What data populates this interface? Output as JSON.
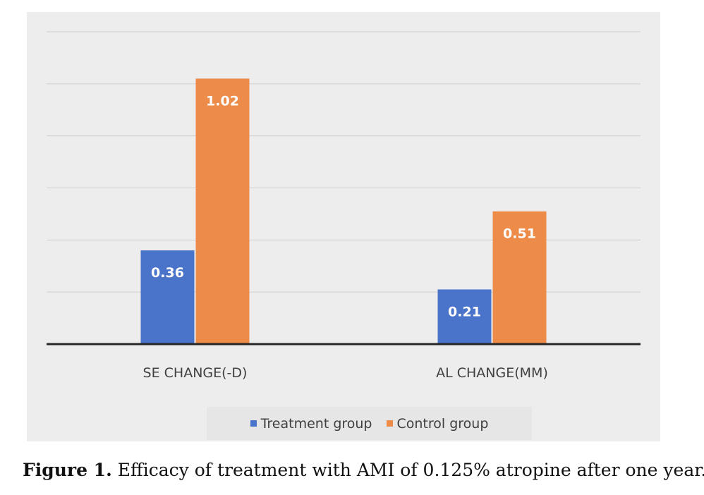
{
  "chart_data": {
    "type": "bar",
    "categories": [
      "SE CHANGE(-D)",
      "AL CHANGE(MM)"
    ],
    "series": [
      {
        "name": "Treatment group",
        "values": [
          0.36,
          0.21
        ],
        "color": "#4a74c9"
      },
      {
        "name": "Control group",
        "values": [
          1.02,
          0.51
        ],
        "color": "#ed8b48"
      }
    ],
    "ylim": [
      0,
      1.2
    ],
    "grid": true,
    "legend_position": "bottom",
    "data_labels": true
  },
  "caption": {
    "label": "Figure 1.",
    "text": "Efficacy of treatment with AMI of 0.125% atropine after one year."
  }
}
